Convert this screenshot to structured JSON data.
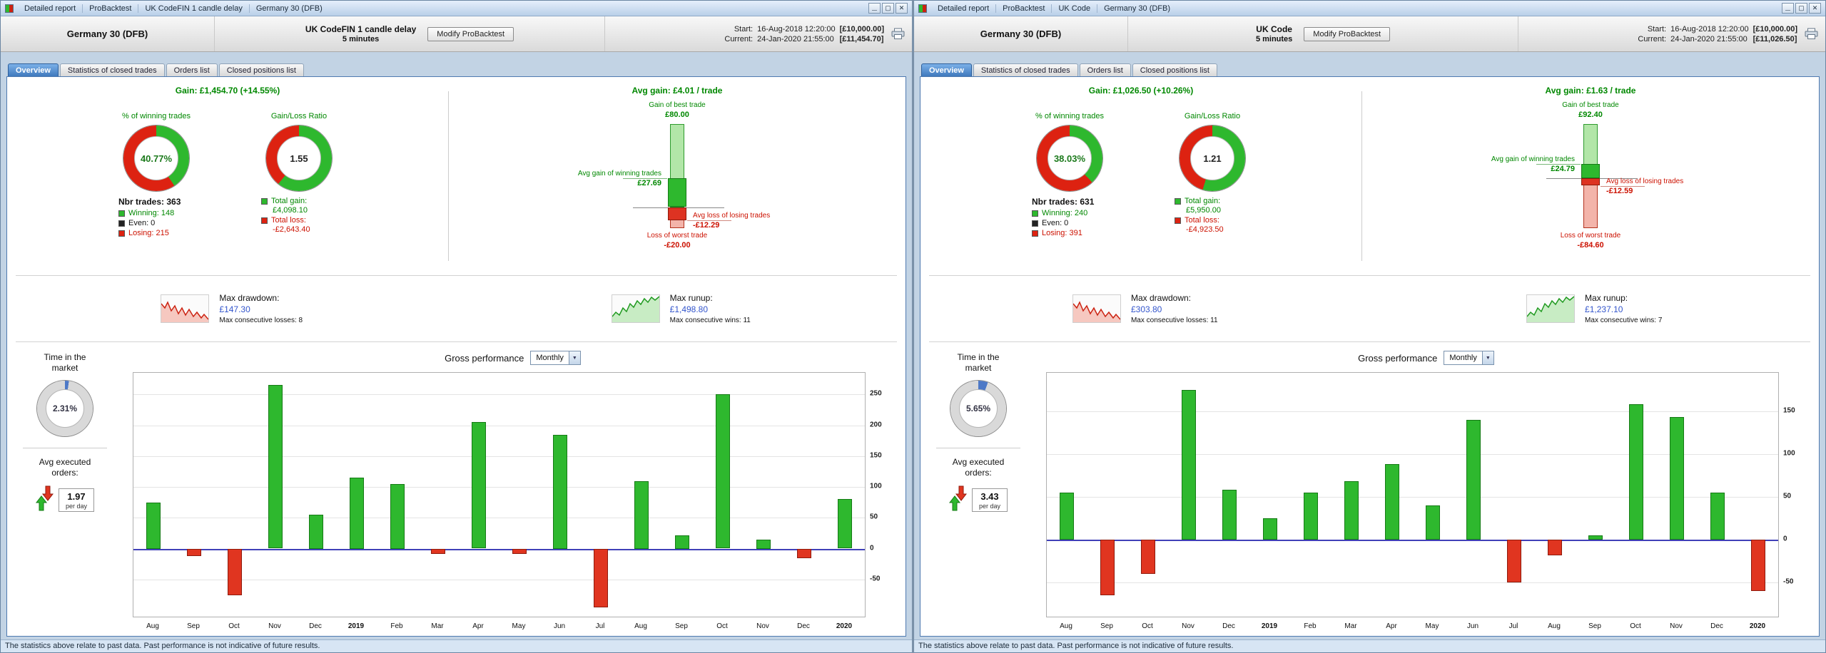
{
  "colors": {
    "green": "#2eb82e",
    "red": "#dd2211",
    "text_green": "#008800",
    "text_red": "#cc1100",
    "value_blue": "#3355cc",
    "time_blue": "#4d79c7",
    "zero_line": "#4040b8"
  },
  "windows": [
    {
      "titlebar": {
        "segments": [
          "Detailed report",
          "ProBacktest",
          "UK CodeFIN 1 candle delay",
          "Germany 30 (DFB)"
        ]
      },
      "header": {
        "instrument": "Germany 30 (DFB)",
        "system_name": "UK CodeFIN 1 candle delay",
        "timeframe": "5 minutes",
        "modify_button": "Modify ProBacktest",
        "start_label": "Start:",
        "start_date": "16-Aug-2018 12:20:00",
        "start_amount": "[£10,000.00]",
        "current_label": "Current:",
        "current_date": "24-Jan-2020 21:55:00",
        "current_amount": "[£11,454.70]"
      },
      "tabs": [
        {
          "label": "Overview"
        },
        {
          "label": "Statistics of closed trades"
        },
        {
          "label": "Orders list"
        },
        {
          "label": "Closed positions list"
        }
      ],
      "overview": {
        "gain_line": "Gain: £1,454.70 (+14.55%)",
        "winning_pct_label": "% of winning trades",
        "winning_pct": "40.77%",
        "winning_pct_value": 40.77,
        "ratio_label": "Gain/Loss Ratio",
        "ratio": "1.55",
        "ratio_value": 1.55,
        "nbr_trades": "Nbr trades: 363",
        "winning": "Winning: 148",
        "even": "Even: 0",
        "losing": "Losing: 215",
        "total_gain_label": "Total gain:",
        "total_gain": "£4,098.10",
        "total_loss_label": "Total loss:",
        "total_loss": "-£2,643.40",
        "avg_gain_title": "Avg gain: £4.01 / trade",
        "best_trade_label": "Gain of best trade",
        "best_trade": "£80.00",
        "best_trade_value": 80.0,
        "avg_win_label": "Avg gain of winning trades",
        "avg_win": "£27.69",
        "avg_win_value": 27.69,
        "avg_loss_label": "Avg loss of losing trades",
        "avg_loss": "-£12.29",
        "avg_loss_value": -12.29,
        "worst_trade_label": "Loss of worst trade",
        "worst_trade": "-£20.00",
        "worst_trade_value": -20.0,
        "max_drawdown_label": "Max drawdown:",
        "max_drawdown": "£147.30",
        "max_consec_losses": "Max consecutive losses: 8",
        "max_runup_label": "Max runup:",
        "max_runup": "£1,498.80",
        "max_consec_wins": "Max consecutive wins: 11",
        "time_in_market_label": "Time in the market",
        "time_in_market": "2.31%",
        "time_in_market_value": 2.31,
        "avg_orders_label": "Avg executed orders:",
        "avg_orders": "1.97",
        "per_day": "per day",
        "gross_perf_label": "Gross performance",
        "period_selected": "Monthly"
      },
      "chart_data": {
        "type": "bar",
        "title": "Gross performance (Monthly)",
        "categories": [
          "Aug",
          "Sep",
          "Oct",
          "Nov",
          "Dec",
          "2019",
          "Feb",
          "Mar",
          "Apr",
          "May",
          "Jun",
          "Jul",
          "Aug",
          "Sep",
          "Oct",
          "Nov",
          "Dec",
          "2020"
        ],
        "values": [
          75,
          -12,
          -75,
          265,
          55,
          115,
          105,
          -8,
          205,
          -8,
          185,
          -95,
          110,
          22,
          250,
          15,
          -15,
          80
        ],
        "yticks": [
          250,
          200,
          150,
          100,
          50,
          0,
          -50
        ],
        "ylim": [
          -110,
          285
        ],
        "grid": true,
        "legend": false
      },
      "status_bar": "The statistics above relate to past data. Past performance is not indicative of future results."
    },
    {
      "titlebar": {
        "segments": [
          "Detailed report",
          "ProBacktest",
          "UK Code",
          "Germany 30 (DFB)"
        ]
      },
      "header": {
        "instrument": "Germany 30 (DFB)",
        "system_name": "UK Code",
        "timeframe": "5 minutes",
        "modify_button": "Modify ProBacktest",
        "start_label": "Start:",
        "start_date": "16-Aug-2018 12:20:00",
        "start_amount": "[£10,000.00]",
        "current_label": "Current:",
        "current_date": "24-Jan-2020 21:55:00",
        "current_amount": "[£11,026.50]"
      },
      "tabs": [
        {
          "label": "Overview"
        },
        {
          "label": "Statistics of closed trades"
        },
        {
          "label": "Orders list"
        },
        {
          "label": "Closed positions list"
        }
      ],
      "overview": {
        "gain_line": "Gain: £1,026.50 (+10.26%)",
        "winning_pct_label": "% of winning trades",
        "winning_pct": "38.03%",
        "winning_pct_value": 38.03,
        "ratio_label": "Gain/Loss Ratio",
        "ratio": "1.21",
        "ratio_value": 1.21,
        "nbr_trades": "Nbr trades: 631",
        "winning": "Winning: 240",
        "even": "Even: 0",
        "losing": "Losing: 391",
        "total_gain_label": "Total gain:",
        "total_gain": "£5,950.00",
        "total_loss_label": "Total loss:",
        "total_loss": "-£4,923.50",
        "avg_gain_title": "Avg gain: £1.63 / trade",
        "best_trade_label": "Gain of best trade",
        "best_trade": "£92.40",
        "best_trade_value": 92.4,
        "avg_win_label": "Avg gain of winning trades",
        "avg_win": "£24.79",
        "avg_win_value": 24.79,
        "avg_loss_label": "Avg loss of losing trades",
        "avg_loss": "-£12.59",
        "avg_loss_value": -12.59,
        "worst_trade_label": "Loss of worst trade",
        "worst_trade": "-£84.60",
        "worst_trade_value": -84.6,
        "max_drawdown_label": "Max drawdown:",
        "max_drawdown": "£303.80",
        "max_consec_losses": "Max consecutive losses: 11",
        "max_runup_label": "Max runup:",
        "max_runup": "£1,237.10",
        "max_consec_wins": "Max consecutive wins: 7",
        "time_in_market_label": "Time in the market",
        "time_in_market": "5.65%",
        "time_in_market_value": 5.65,
        "avg_orders_label": "Avg executed orders:",
        "avg_orders": "3.43",
        "per_day": "per day",
        "gross_perf_label": "Gross performance",
        "period_selected": "Monthly"
      },
      "chart_data": {
        "type": "bar",
        "title": "Gross performance (Monthly)",
        "categories": [
          "Aug",
          "Sep",
          "Oct",
          "Nov",
          "Dec",
          "2019",
          "Feb",
          "Mar",
          "Apr",
          "May",
          "Jun",
          "Jul",
          "Aug",
          "Sep",
          "Oct",
          "Nov",
          "Dec",
          "2020"
        ],
        "values": [
          55,
          -65,
          -40,
          175,
          58,
          25,
          55,
          68,
          88,
          40,
          140,
          -50,
          -18,
          5,
          158,
          143,
          55,
          -60
        ],
        "yticks": [
          150,
          100,
          50,
          0,
          -50
        ],
        "ylim": [
          -90,
          195
        ],
        "grid": true,
        "legend": false
      },
      "status_bar": "The statistics above relate to past data. Past performance is not indicative of future results."
    }
  ]
}
